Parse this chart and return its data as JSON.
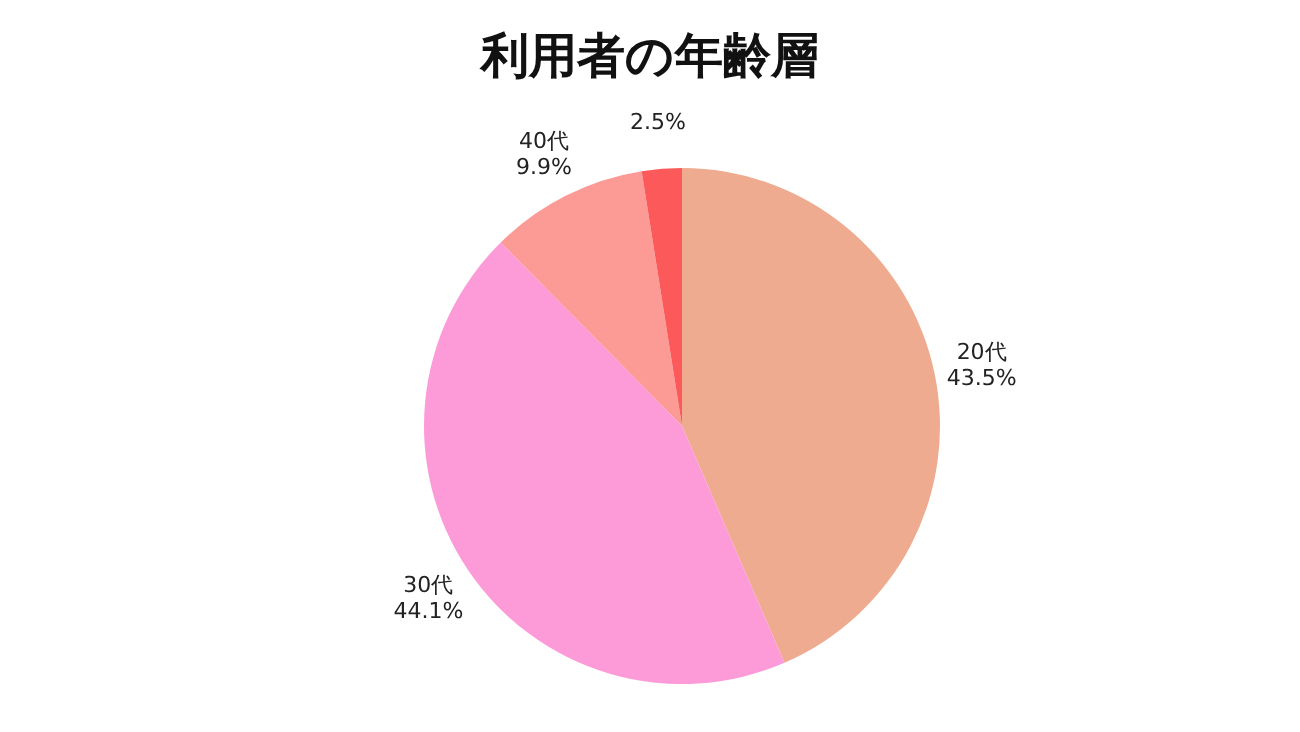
{
  "chart_data": {
    "type": "pie",
    "title": "利用者の年齢層",
    "categories": [
      "20代",
      "30代",
      "40代",
      null
    ],
    "values": [
      43.5,
      44.1,
      9.9,
      2.5
    ],
    "colors": [
      "#eeab8f",
      "#fd9ad8",
      "#fc9a96",
      "#fc5a5a"
    ],
    "value_labels": [
      "43.5%",
      "44.1%",
      "9.9%",
      "2.5%"
    ],
    "legend": false
  }
}
